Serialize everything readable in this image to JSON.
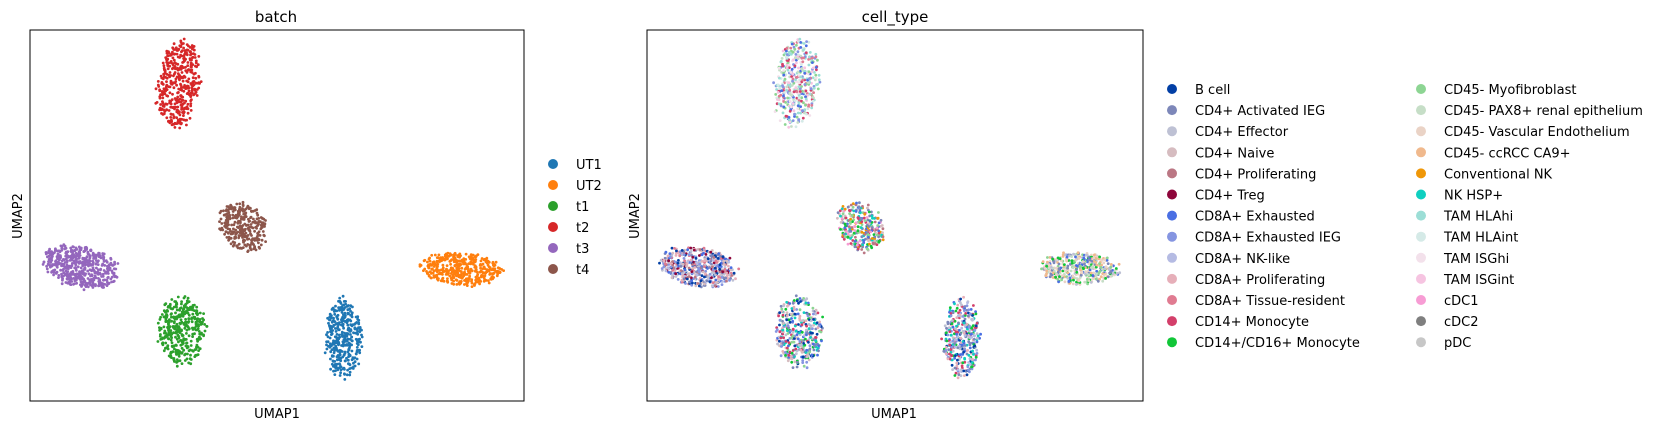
{
  "chart_data": [
    {
      "type": "scatter",
      "title": "batch",
      "xlabel": "UMAP1",
      "ylabel": "UMAP2",
      "xlim": [
        0,
        100
      ],
      "ylim": [
        0,
        100
      ],
      "legend_position": "right",
      "series": [
        {
          "name": "UT1",
          "color": "#1f77b4",
          "cluster": {
            "cx": 63.5,
            "cy": 16.5,
            "rx": 3.7,
            "ry": 10.5,
            "tilt": 0,
            "n": 360
          }
        },
        {
          "name": "UT2",
          "color": "#ff7f0e",
          "cluster": {
            "cx": 87.5,
            "cy": 35.5,
            "rx": 8.0,
            "ry": 4.3,
            "tilt": -5,
            "n": 420
          }
        },
        {
          "name": "t1",
          "color": "#2ca02c",
          "cluster": {
            "cx": 30.5,
            "cy": 18.5,
            "rx": 4.8,
            "ry": 9.2,
            "tilt": 0,
            "n": 380
          }
        },
        {
          "name": "t2",
          "color": "#d62728",
          "cluster": {
            "cx": 30.0,
            "cy": 86.0,
            "rx": 4.3,
            "ry": 11.8,
            "tilt": -4,
            "n": 420
          }
        },
        {
          "name": "t3",
          "color": "#9467bd",
          "cluster": {
            "cx": 10.0,
            "cy": 36.0,
            "rx": 8.0,
            "ry": 5.2,
            "tilt": -20,
            "n": 520
          }
        },
        {
          "name": "t4",
          "color": "#8c564b",
          "cluster": {
            "cx": 43.0,
            "cy": 47.0,
            "rx": 4.5,
            "ry": 6.6,
            "tilt": 15,
            "n": 300
          }
        }
      ]
    },
    {
      "type": "scatter",
      "title": "cell_type",
      "xlabel": "UMAP1",
      "ylabel": "UMAP2",
      "xlim": [
        0,
        100
      ],
      "ylim": [
        0,
        100
      ],
      "legend_position": "right",
      "legend_columns": 2,
      "categories": [
        {
          "name": "B cell",
          "color": "#023fa5"
        },
        {
          "name": "CD4+ Activated IEG",
          "color": "#7d87b9"
        },
        {
          "name": "CD4+ Effector",
          "color": "#bec1d4"
        },
        {
          "name": "CD4+ Naive",
          "color": "#d6bcc0"
        },
        {
          "name": "CD4+ Proliferating",
          "color": "#bb7784"
        },
        {
          "name": "CD4+ Treg",
          "color": "#8e063b"
        },
        {
          "name": "CD8A+ Exhausted",
          "color": "#4a6fe3"
        },
        {
          "name": "CD8A+ Exhausted IEG",
          "color": "#8595e1"
        },
        {
          "name": "CD8A+ NK-like",
          "color": "#b5bbe3"
        },
        {
          "name": "CD8A+ Proliferating",
          "color": "#e6afb9"
        },
        {
          "name": "CD8A+ Tissue-resident",
          "color": "#e07b91"
        },
        {
          "name": "CD14+ Monocyte",
          "color": "#d33f6a"
        },
        {
          "name": "CD14+/CD16+ Monocyte",
          "color": "#11c638"
        },
        {
          "name": "CD45- Myofibroblast",
          "color": "#8dd593"
        },
        {
          "name": "CD45- PAX8+ renal epithelium",
          "color": "#c6dec7"
        },
        {
          "name": "CD45- Vascular Endothelium",
          "color": "#ead3c6"
        },
        {
          "name": "CD45- ccRCC CA9+",
          "color": "#f0b98d"
        },
        {
          "name": "Conventional NK",
          "color": "#ef9708"
        },
        {
          "name": "NK HSP+",
          "color": "#0fcfc0"
        },
        {
          "name": "TAM HLAhi",
          "color": "#9cded6"
        },
        {
          "name": "TAM HLAint",
          "color": "#d5eae7"
        },
        {
          "name": "TAM ISGhi",
          "color": "#f3e1eb"
        },
        {
          "name": "TAM ISGint",
          "color": "#f6c4e1"
        },
        {
          "name": "cDC1",
          "color": "#f79cd4"
        },
        {
          "name": "cDC2",
          "color": "#7f7f7f"
        },
        {
          "name": "pDC",
          "color": "#c7c7c7"
        }
      ],
      "clusters": [
        {
          "cx": 63.5,
          "cy": 16.5,
          "rx": 3.7,
          "ry": 10.5,
          "tilt": 0,
          "n": 360,
          "mix": [
            6,
            7,
            0,
            1,
            12,
            18,
            11,
            8,
            2,
            9
          ]
        },
        {
          "cx": 87.5,
          "cy": 35.5,
          "rx": 8.0,
          "ry": 4.3,
          "tilt": -5,
          "n": 420,
          "mix": [
            16,
            15,
            12,
            13,
            6,
            1,
            2,
            14,
            16,
            15
          ]
        },
        {
          "cx": 30.5,
          "cy": 18.5,
          "rx": 4.8,
          "ry": 9.2,
          "tilt": 0,
          "n": 380,
          "mix": [
            6,
            7,
            0,
            12,
            1,
            2,
            13,
            3,
            9,
            11,
            18
          ]
        },
        {
          "cx": 30.0,
          "cy": 86.0,
          "rx": 4.3,
          "ry": 11.8,
          "tilt": -4,
          "n": 420,
          "mix": [
            19,
            20,
            19,
            11,
            10,
            13,
            6,
            7,
            14,
            21,
            22
          ]
        },
        {
          "cx": 10.0,
          "cy": 36.0,
          "rx": 8.0,
          "ry": 5.2,
          "tilt": -20,
          "n": 520,
          "mix": [
            6,
            7,
            1,
            0,
            2,
            8,
            9,
            5,
            4,
            10,
            3
          ]
        },
        {
          "cx": 43.0,
          "cy": 47.0,
          "rx": 4.5,
          "ry": 6.6,
          "tilt": 15,
          "n": 300,
          "mix": [
            17,
            12,
            13,
            4,
            1,
            6,
            3,
            11,
            23,
            18
          ]
        }
      ]
    }
  ]
}
